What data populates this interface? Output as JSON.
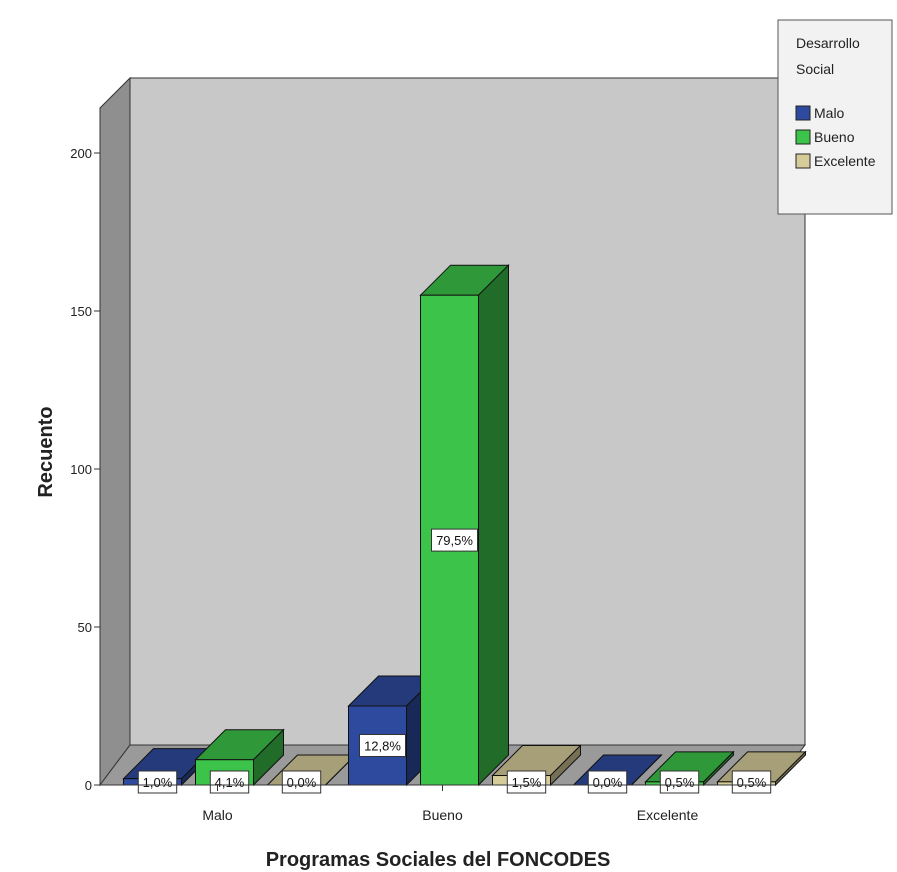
{
  "chart_data": {
    "type": "bar",
    "title": "",
    "xlabel": "Programas Sociales del FONCODES",
    "ylabel": "Recuento",
    "categories": [
      "Malo",
      "Bueno",
      "Excelente"
    ],
    "ylim": [
      0,
      200
    ],
    "yticks": [
      0,
      50,
      100,
      150,
      200
    ],
    "grid": false,
    "legend_position": "top-right",
    "legend_title": [
      "Desarrollo",
      "Social"
    ],
    "series": [
      {
        "name": "Malo",
        "color": "#2e4a9e",
        "values": [
          2,
          25,
          0
        ],
        "labels": [
          "1,0%",
          "12,8%",
          "0,0%"
        ]
      },
      {
        "name": "Bueno",
        "color": "#3cc44a",
        "values": [
          8,
          155,
          1
        ],
        "labels": [
          "4,1%",
          "79,5%",
          "0,5%"
        ]
      },
      {
        "name": "Excelente",
        "color": "#d6cc9a",
        "values": [
          0,
          3,
          1
        ],
        "labels": [
          "0,0%",
          "1,5%",
          "0,5%"
        ]
      }
    ]
  }
}
